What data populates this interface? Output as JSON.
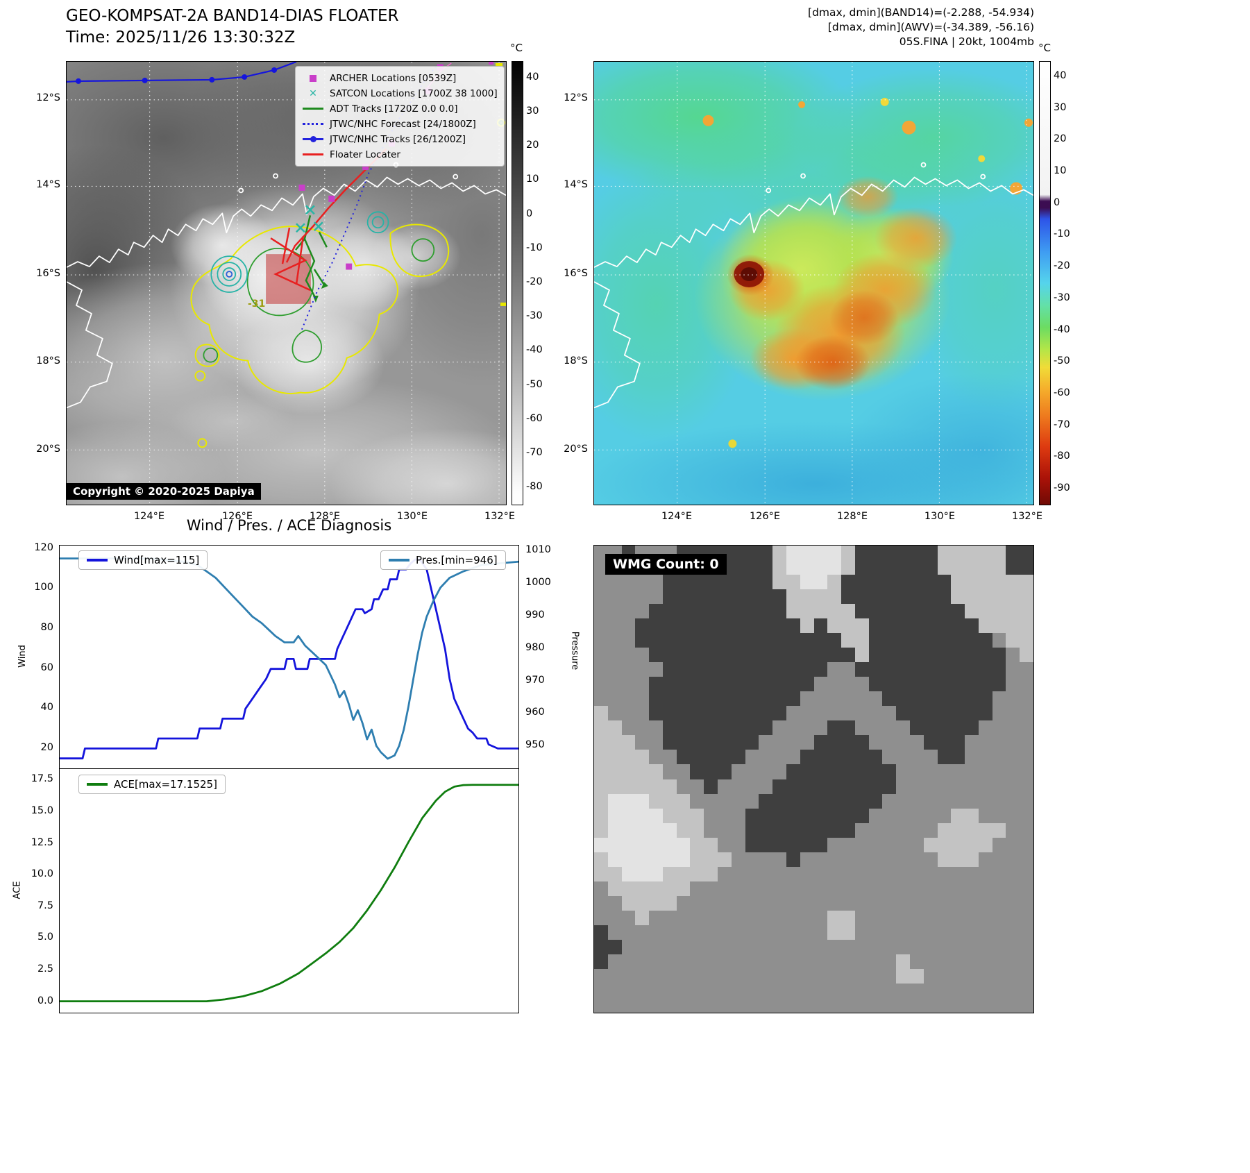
{
  "band14": {
    "title": "GEO-KOMPSAT-2A BAND14-DIAS FLOATER",
    "time_label": "Time: 2025/11/26 13:30:32Z",
    "copyright": "Copyright © 2020-2025 Dapiya",
    "annotation": "-31",
    "legend": [
      {
        "label": "ARCHER Locations [0539Z]",
        "marker": "square",
        "color": "#c93ec9"
      },
      {
        "label": "SATCON Locations [1700Z 38 1000]",
        "marker": "x",
        "color": "#2ab5a5"
      },
      {
        "label": "ADT Tracks [1720Z 0.0 0.0]",
        "marker": "line",
        "color": "#1e8a1e"
      },
      {
        "label": "JTWC/NHC Forecast [24/1800Z]",
        "marker": "dotted",
        "color": "#2222dd"
      },
      {
        "label": "JTWC/NHC Tracks [26/1200Z]",
        "marker": "line-dot",
        "color": "#2222dd"
      },
      {
        "label": "Floater Locater",
        "marker": "line",
        "color": "#e82020"
      }
    ],
    "colorbar": {
      "unit": "°C",
      "vmax": 45,
      "vmin": -85,
      "ticks": [
        40,
        30,
        20,
        10,
        0,
        -10,
        -20,
        -30,
        -40,
        -50,
        -60,
        -70,
        -80
      ]
    },
    "lat_ticks": [
      "12°S",
      "14°S",
      "16°S",
      "18°S",
      "20°S"
    ],
    "lon_ticks": [
      "124°E",
      "126°E",
      "128°E",
      "130°E",
      "132°E"
    ]
  },
  "awv": {
    "info_lines": [
      "[dmax, dmin](BAND14)=(-2.288, -54.934)",
      "[dmax, dmin](AWV)=(-34.389, -56.16)",
      "05S.FINA | 20kt, 1004mb"
    ],
    "colorbar": {
      "unit": "°C",
      "vmax": 45,
      "vmin": -95,
      "ticks": [
        40,
        30,
        20,
        10,
        0,
        -10,
        -20,
        -30,
        -40,
        -50,
        -60,
        -70,
        -80,
        -90
      ]
    },
    "lat_ticks": [
      "12°S",
      "14°S",
      "16°S",
      "18°S",
      "20°S"
    ],
    "lon_ticks": [
      "124°E",
      "126°E",
      "128°E",
      "130°E",
      "132°E"
    ]
  },
  "diagnosis": {
    "title": "Wind / Pres. / ACE Diagnosis"
  },
  "wmg": {
    "label": "WMG Count: 0",
    "palette": {
      "0": "#3f3f3f",
      "1": "#8f8f8f",
      "2": "#c3c3c3",
      "3": "#e3e3e3"
    },
    "rows": [
      "11011100000002333320000002222200",
      "11101100000002333320000002222200",
      "11111000000002233200000000222222",
      "11111000000000222200000000222222",
      "11110000000000222220000000022222",
      "11100000000000020222000000002222",
      "11100000000000000022000000000122",
      "11110000000000000002000000000012",
      "11111000000000000110000000000011",
      "11110000000000001111000000000011",
      "11110000000000011111100000000111",
      "21110000000000111111110000000111",
      "22111000000001111001111000001111",
      "22211000000011110000111100011111",
      "22221100000111100000011110011111",
      "22222110001111000000001111111111",
      "22222211011110000000001111111111",
      "23332221111100000000011111111111",
      "23333222111000000000111111221111",
      "23333322111000000001111112222211",
      "33333332211000000111111122222111",
      "23333332221111011111111112221111",
      "22333222211111111111111111111111",
      "12222221111111111111111111111111",
      "11222211111111111111111111111111",
      "11121111111111111221111111111111",
      "01111111111111111221111111111111",
      "00111111111111111111111111111111",
      "01111111111111111111112111111111",
      "11111111111111111111112211111111",
      "11111111111111111111111111111111",
      "11111111111111111111111111111111"
    ]
  },
  "chart_data": [
    {
      "type": "line",
      "title": "Wind / Pres. / ACE Diagnosis",
      "xlabel": "",
      "grid": false,
      "series": [
        {
          "name": "Wind[max=115]",
          "color": "#1414dc",
          "axis": "left",
          "axis_label": "Wind",
          "ylim": [
            10,
            122
          ],
          "yticks": [
            20,
            40,
            60,
            80,
            100,
            120
          ],
          "x": [
            0.0,
            0.05,
            0.055,
            0.13,
            0.135,
            0.21,
            0.215,
            0.3,
            0.305,
            0.35,
            0.355,
            0.4,
            0.405,
            0.42,
            0.435,
            0.45,
            0.46,
            0.47,
            0.49,
            0.495,
            0.51,
            0.515,
            0.54,
            0.545,
            0.6,
            0.605,
            0.615,
            0.625,
            0.635,
            0.645,
            0.66,
            0.665,
            0.68,
            0.685,
            0.695,
            0.705,
            0.715,
            0.72,
            0.735,
            0.74,
            0.755,
            0.765,
            0.775,
            0.785,
            0.8,
            0.81,
            0.82,
            0.83,
            0.84,
            0.85,
            0.86,
            0.87,
            0.88,
            0.89,
            0.9,
            0.91,
            0.93,
            0.935,
            0.955,
            1.0
          ],
          "values": [
            15,
            15,
            20,
            20,
            20,
            20,
            25,
            25,
            30,
            30,
            35,
            35,
            40,
            45,
            50,
            55,
            60,
            60,
            60,
            65,
            65,
            60,
            60,
            65,
            65,
            70,
            75,
            80,
            85,
            90,
            90,
            88,
            90,
            95,
            95,
            100,
            100,
            105,
            105,
            110,
            110,
            113,
            115,
            115,
            110,
            100,
            90,
            80,
            70,
            55,
            45,
            40,
            35,
            30,
            28,
            25,
            25,
            22,
            20,
            20
          ]
        },
        {
          "name": "Pres.[min=946]",
          "color": "#2e7eb0",
          "axis": "right",
          "axis_label": "Pressure",
          "ylim": [
            943,
            1012
          ],
          "yticks": [
            950,
            960,
            970,
            980,
            990,
            1000,
            1010
          ],
          "x": [
            0.0,
            0.2,
            0.27,
            0.3,
            0.32,
            0.34,
            0.36,
            0.38,
            0.4,
            0.42,
            0.44,
            0.455,
            0.47,
            0.49,
            0.51,
            0.52,
            0.535,
            0.55,
            0.565,
            0.58,
            0.6,
            0.61,
            0.62,
            0.63,
            0.64,
            0.65,
            0.66,
            0.67,
            0.68,
            0.69,
            0.7,
            0.715,
            0.73,
            0.74,
            0.75,
            0.76,
            0.77,
            0.78,
            0.79,
            0.8,
            0.815,
            0.83,
            0.85,
            0.88,
            0.92,
            1.0
          ],
          "values": [
            1008,
            1008,
            1007,
            1006,
            1004,
            1002,
            999,
            996,
            993,
            990,
            988,
            986,
            984,
            982,
            982,
            984,
            981,
            979,
            977,
            975,
            969,
            965,
            967,
            963,
            958,
            961,
            957,
            952,
            955,
            950,
            948,
            946,
            947,
            950,
            955,
            962,
            970,
            978,
            985,
            990,
            995,
            999,
            1002,
            1004,
            1006,
            1007
          ]
        }
      ]
    },
    {
      "type": "line",
      "title": "",
      "xlabel": "",
      "grid": false,
      "series": [
        {
          "name": "ACE[max=17.1525]",
          "color": "#0f7d0f",
          "axis": "left",
          "axis_label": "ACE",
          "ylim": [
            -0.9,
            18.4
          ],
          "yticks": [
            0.0,
            2.5,
            5.0,
            7.5,
            10.0,
            12.5,
            15.0,
            17.5
          ],
          "ytick_labels": [
            "0.0",
            "2.5",
            "5.0",
            "7.5",
            "10.0",
            "12.5",
            "15.0",
            "17.5"
          ],
          "x": [
            0.0,
            0.32,
            0.36,
            0.4,
            0.44,
            0.48,
            0.52,
            0.55,
            0.58,
            0.61,
            0.64,
            0.67,
            0.7,
            0.73,
            0.76,
            0.79,
            0.82,
            0.84,
            0.86,
            0.88,
            0.9,
            1.0
          ],
          "values": [
            0.0,
            0.0,
            0.15,
            0.4,
            0.8,
            1.4,
            2.2,
            3.0,
            3.8,
            4.7,
            5.8,
            7.2,
            8.8,
            10.6,
            12.6,
            14.5,
            15.9,
            16.6,
            17.0,
            17.13,
            17.15,
            17.15
          ]
        }
      ]
    }
  ]
}
